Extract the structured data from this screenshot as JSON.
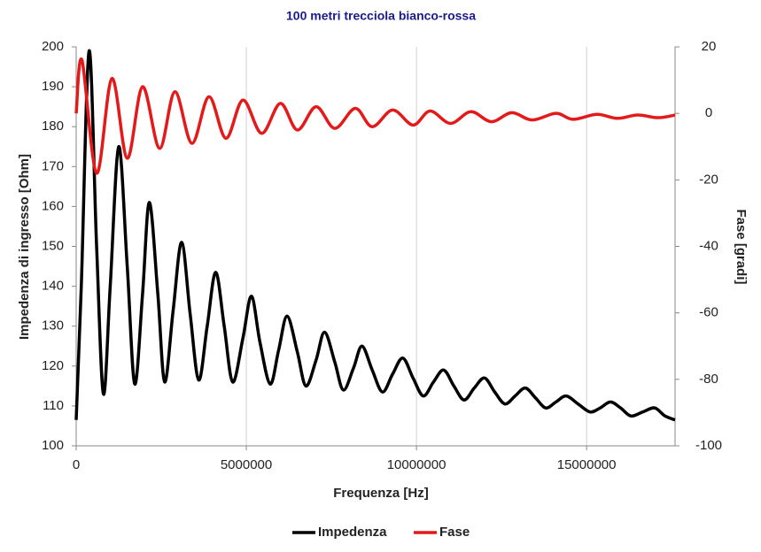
{
  "chart_data": {
    "type": "line",
    "title": "100 metri trecciola bianco-rossa",
    "xlabel": "Frequenza [Hz]",
    "ylabel": "Impedenza di ingresso [Ohm]",
    "y2label": "Fase [gradi]",
    "xlim": [
      0,
      17600000
    ],
    "xticks": [
      0,
      5000000,
      10000000,
      15000000
    ],
    "ylim": [
      100,
      200
    ],
    "yticks": [
      100,
      110,
      120,
      130,
      140,
      150,
      160,
      170,
      180,
      190,
      200
    ],
    "y2lim": [
      -100,
      20
    ],
    "y2ticks": [
      -100,
      -80,
      -60,
      -40,
      -20,
      0,
      20
    ],
    "grid": "x",
    "legend": "bottom",
    "series": [
      {
        "name": "Impedenza",
        "color": "#000000",
        "axis": "y",
        "x": [
          0,
          150000,
          380000,
          600000,
          800000,
          1000000,
          1250000,
          1500000,
          1720000,
          1950000,
          2150000,
          2400000,
          2600000,
          2850000,
          3100000,
          3350000,
          3600000,
          3850000,
          4100000,
          4350000,
          4600000,
          4900000,
          5150000,
          5400000,
          5700000,
          5950000,
          6200000,
          6500000,
          6750000,
          7050000,
          7300000,
          7600000,
          7850000,
          8150000,
          8400000,
          8700000,
          9000000,
          9300000,
          9600000,
          9900000,
          10200000,
          10500000,
          10800000,
          11100000,
          11400000,
          11700000,
          12000000,
          12300000,
          12600000,
          12900000,
          13200000,
          13500000,
          13800000,
          14100000,
          14400000,
          14750000,
          15100000,
          15400000,
          15700000,
          16000000,
          16300000,
          16650000,
          17000000,
          17300000,
          17600000
        ],
        "values": [
          106.5,
          140,
          199,
          150,
          113,
          140,
          175,
          145,
          115.5,
          138,
          161,
          138,
          116,
          134,
          151,
          133,
          116.5,
          130,
          143.5,
          130,
          116,
          127,
          137.5,
          126,
          115.5,
          124,
          132.5,
          123.5,
          115,
          121.5,
          128.5,
          121,
          114,
          119.5,
          125,
          119,
          113.5,
          118,
          122,
          117,
          112.5,
          116,
          119,
          115,
          111.5,
          114.5,
          117,
          113.5,
          110.5,
          112.5,
          114.5,
          112,
          109.5,
          111,
          112.5,
          110.5,
          108.5,
          109.5,
          111,
          109.5,
          107.5,
          108.5,
          109.5,
          107.5,
          106.5
        ]
      },
      {
        "name": "Fase",
        "color": "#e41a1a",
        "axis": "y2",
        "x": [
          0,
          170000,
          600000,
          1050000,
          1500000,
          1950000,
          2450000,
          2900000,
          3400000,
          3900000,
          4400000,
          4900000,
          5450000,
          6000000,
          6500000,
          7050000,
          7600000,
          8200000,
          8700000,
          9300000,
          9900000,
          10400000,
          11000000,
          11600000,
          12200000,
          12800000,
          13400000,
          14100000,
          14600000,
          15300000,
          15900000,
          16500000,
          17100000,
          17600000
        ],
        "values": [
          0,
          16,
          -18,
          10.5,
          -13.5,
          8,
          -10.5,
          6.5,
          -9,
          5,
          -7.5,
          4,
          -6,
          3,
          -5,
          2,
          -4.5,
          1.5,
          -4,
          1,
          -3.5,
          0.7,
          -3,
          0.5,
          -2.5,
          0.2,
          -2,
          0,
          -1.8,
          -0.3,
          -1.5,
          -0.5,
          -1.3,
          -0.5
        ]
      }
    ]
  }
}
